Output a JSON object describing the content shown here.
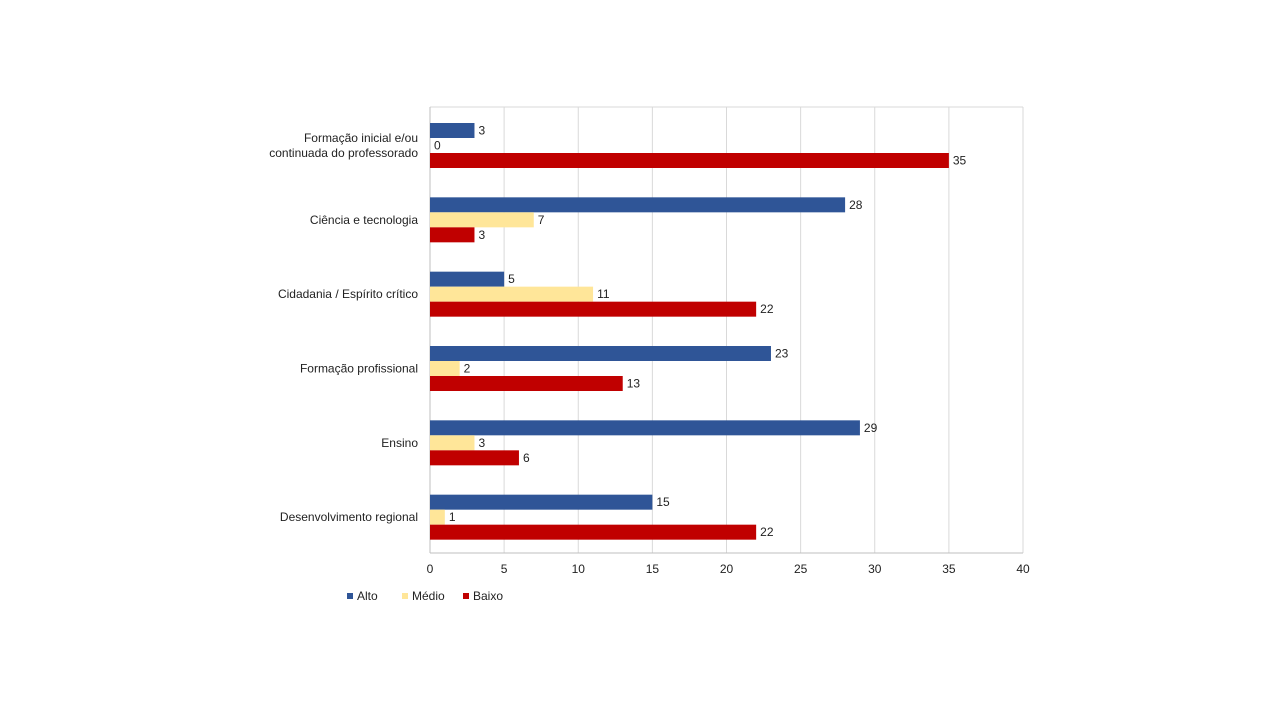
{
  "chart_data": {
    "type": "bar",
    "orientation": "horizontal",
    "categories": [
      [
        "Formação inicial e/ou",
        "continuada do professorado"
      ],
      [
        "Ciência e tecnologia"
      ],
      [
        "Cidadania / Espírito crítico"
      ],
      [
        "Formação profissional"
      ],
      [
        "Ensino"
      ],
      [
        "Desenvolvimento regional"
      ]
    ],
    "series": [
      {
        "name": "Alto",
        "color": "#2F5597",
        "values": [
          3,
          28,
          5,
          23,
          29,
          15
        ]
      },
      {
        "name": "Médio",
        "color": "#FFE699",
        "values": [
          0,
          7,
          11,
          2,
          3,
          1
        ]
      },
      {
        "name": "Baixo",
        "color": "#C00000",
        "values": [
          35,
          3,
          22,
          13,
          6,
          22
        ]
      }
    ],
    "xlim": [
      0,
      40
    ],
    "xticks": [
      0,
      5,
      10,
      15,
      20,
      25,
      30,
      35,
      40
    ],
    "grid": true,
    "legend_position": "bottom-left",
    "data_labels": true
  }
}
